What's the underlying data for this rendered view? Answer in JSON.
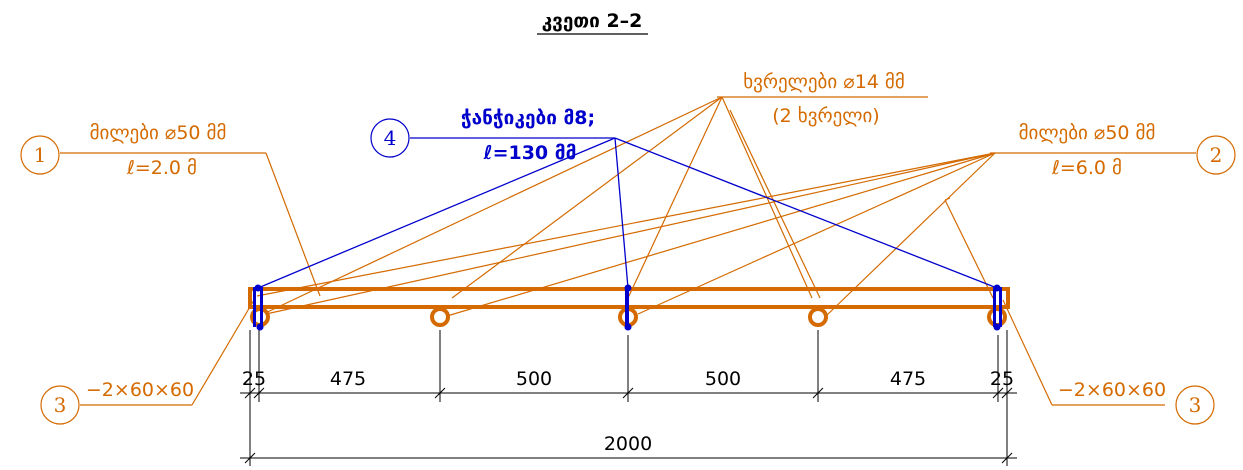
{
  "title": "კვეთი 2–2",
  "colors": {
    "orange": "#d46a00",
    "blue": "#0000cc",
    "black": "#000000"
  },
  "callouts": [
    {
      "number": "1",
      "line1": "მილები ⌀50 მმ",
      "line2": "ℓ=2.0 მ"
    },
    {
      "number": "2",
      "line1": "მილები ⌀50 მმ",
      "line2": "ℓ=6.0 მ"
    },
    {
      "number": "3",
      "line1": "−2×60×60"
    },
    {
      "number": "3",
      "line1": "−2×60×60"
    },
    {
      "number": "4",
      "line1": "ჭანჭიკები მ8;",
      "line2": "ℓ=130 მმ"
    }
  ],
  "holes": {
    "line1": "ხვრელები ⌀14 მმ",
    "line2": "(2 ხვრელი)"
  },
  "dimensions": {
    "segments": [
      "25",
      "475",
      "500",
      "500",
      "475",
      "25"
    ],
    "total": "2000"
  }
}
